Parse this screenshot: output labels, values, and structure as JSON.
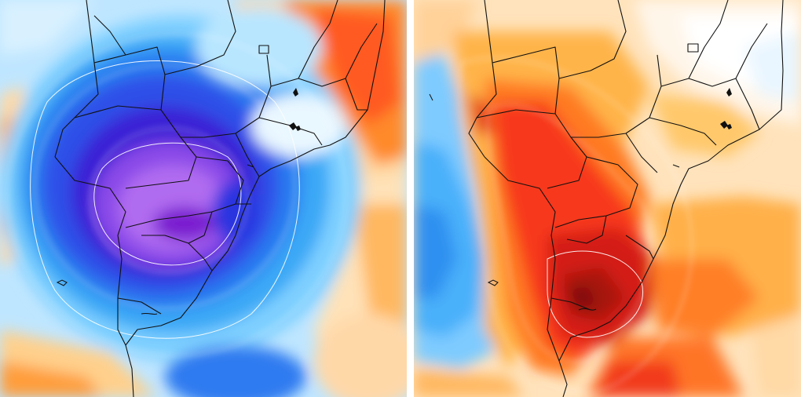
{
  "figure": {
    "panels": [
      {
        "id": "left",
        "description_visible": false,
        "anomaly": "cold",
        "palette": [
          "#7a1fd0",
          "#a35be8",
          "#3a20d8",
          "#2f55ee",
          "#1f8cf2",
          "#56c1ff",
          "#b9e8ff",
          "#ffffff",
          "#ffd18c",
          "#ff9d3b"
        ]
      },
      {
        "id": "right",
        "description_visible": false,
        "anomaly": "warm",
        "palette": [
          "#8d0a0a",
          "#c2160f",
          "#f02a1c",
          "#ff5a22",
          "#ff8a2b",
          "#ffb44a",
          "#ffd27a",
          "#ffe9bc",
          "#ffffff",
          "#5fc0ff"
        ]
      }
    ],
    "colors": {
      "border_lines": "#111111",
      "contour_lines": "#ffffff",
      "divider": "#ffffff"
    }
  }
}
